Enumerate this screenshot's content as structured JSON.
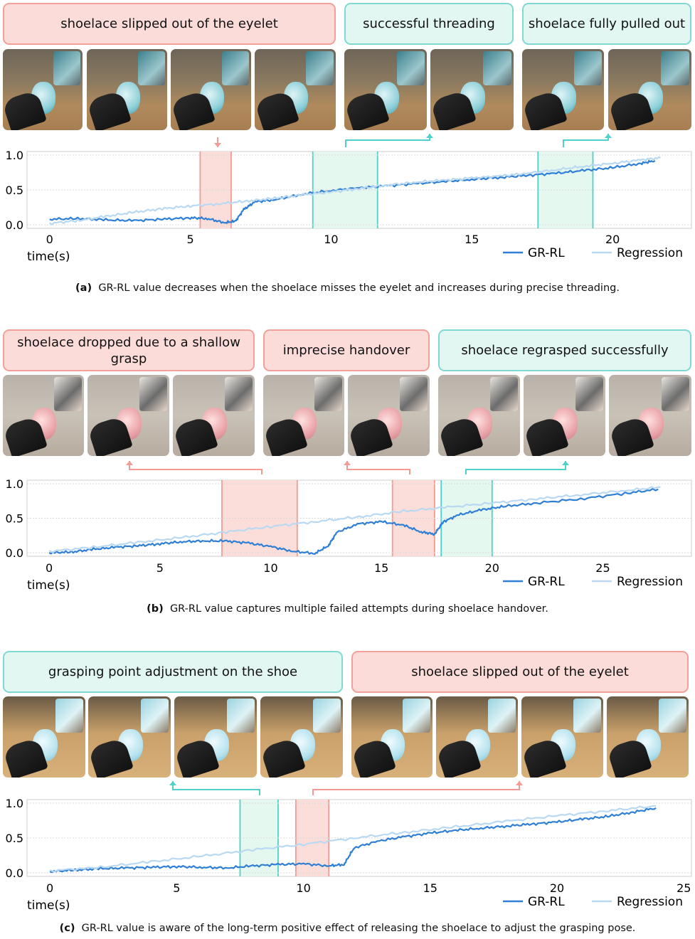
{
  "panels": [
    {
      "id": "a",
      "banners": [
        {
          "text": "shoelace slipped out of the eyelet",
          "color": "red"
        },
        {
          "text": "successful threading",
          "color": "green"
        },
        {
          "text": "shoelace fully pulled out",
          "color": "green"
        }
      ],
      "caption_label": "(a)",
      "caption_text": "GR-RL value decreases when the shoelace misses the eyelet and increases during precise threading."
    },
    {
      "id": "b",
      "banners": [
        {
          "text": "shoelace dropped due to a shallow grasp",
          "color": "red"
        },
        {
          "text": "imprecise handover",
          "color": "red"
        },
        {
          "text": "shoelace regrasped successfully",
          "color": "green"
        }
      ],
      "caption_label": "(b)",
      "caption_text": "GR-RL value captures multiple failed attempts during shoelace handover."
    },
    {
      "id": "c",
      "banners": [
        {
          "text": "grasping point adjustment on the shoe",
          "color": "green"
        },
        {
          "text": "shoelace slipped out of the eyelet",
          "color": "red"
        }
      ],
      "caption_label": "(c)",
      "caption_text": "GR-RL value is aware of the long-term positive effect of releasing the shoelace to adjust the grasping pose."
    }
  ],
  "colors": {
    "grrl": "#2f7fd4",
    "regression": "#b9d9f2",
    "red_fill": "#fbdcd8",
    "red_edge": "#f29a93",
    "green_fill": "#e4f8ee",
    "green_edge": "#4fd0c8",
    "grid": "#d9d9d9"
  },
  "chart_data": [
    {
      "type": "line",
      "title": "",
      "xlabel": "time(s)",
      "ylabel": "",
      "xlim": [
        -0.8,
        22.8
      ],
      "ylim": [
        0,
        1
      ],
      "xticks": [
        "0",
        "5",
        "10",
        "15",
        "20"
      ],
      "yticks": [
        "0.0",
        "0.5",
        "1.0"
      ],
      "legend": [
        "GR-RL",
        "Regression"
      ],
      "highlights": [
        {
          "from": 5.35,
          "to": 6.45,
          "kind": "red"
        },
        {
          "from": 9.35,
          "to": 11.65,
          "kind": "green"
        },
        {
          "from": 17.35,
          "to": 19.3,
          "kind": "green"
        }
      ],
      "series": [
        {
          "name": "GR-RL",
          "x": [
            0,
            1,
            2,
            3,
            4,
            5,
            5.6,
            6.2,
            6.6,
            6.9,
            7.3,
            8,
            9,
            10,
            11,
            12,
            13,
            14,
            15,
            16,
            17,
            18,
            19,
            20,
            21,
            21.5
          ],
          "y": [
            0.08,
            0.09,
            0.07,
            0.06,
            0.08,
            0.1,
            0.09,
            0.03,
            0.05,
            0.22,
            0.33,
            0.36,
            0.44,
            0.49,
            0.53,
            0.56,
            0.59,
            0.62,
            0.65,
            0.68,
            0.71,
            0.74,
            0.78,
            0.82,
            0.88,
            0.92
          ]
        },
        {
          "name": "Regression",
          "x": [
            0,
            1,
            2,
            3,
            4,
            5,
            6,
            7,
            8,
            9,
            10,
            11,
            12,
            13,
            14,
            15,
            16,
            17,
            18,
            19,
            20,
            21,
            21.7
          ],
          "y": [
            0.02,
            0.06,
            0.12,
            0.18,
            0.23,
            0.27,
            0.3,
            0.34,
            0.38,
            0.43,
            0.47,
            0.52,
            0.57,
            0.61,
            0.64,
            0.67,
            0.7,
            0.74,
            0.79,
            0.84,
            0.88,
            0.93,
            0.96
          ]
        }
      ]
    },
    {
      "type": "line",
      "title": "",
      "xlabel": "time(s)",
      "ylabel": "",
      "xlim": [
        -1,
        29
      ],
      "ylim": [
        0,
        1
      ],
      "xticks": [
        "0",
        "5",
        "10",
        "15",
        "20",
        "25"
      ],
      "yticks": [
        "0.0",
        "0.5",
        "1.0"
      ],
      "legend": [
        "GR-RL",
        "Regression"
      ],
      "highlights": [
        {
          "from": 7.8,
          "to": 11.2,
          "kind": "red"
        },
        {
          "from": 15.5,
          "to": 17.4,
          "kind": "red"
        },
        {
          "from": 17.7,
          "to": 20.0,
          "kind": "green"
        }
      ],
      "series": [
        {
          "name": "GR-RL",
          "x": [
            0,
            1,
            2,
            3,
            4,
            5,
            6,
            7,
            8,
            9,
            10,
            11,
            12,
            12.6,
            13,
            14,
            15,
            16,
            16.8,
            17.4,
            17.8,
            18.5,
            19.5,
            20.5,
            22,
            24,
            26,
            27.5
          ],
          "y": [
            0.0,
            0.01,
            0.05,
            0.08,
            0.1,
            0.13,
            0.16,
            0.17,
            0.17,
            0.14,
            0.09,
            0.02,
            -0.01,
            0.1,
            0.3,
            0.42,
            0.45,
            0.4,
            0.3,
            0.27,
            0.45,
            0.55,
            0.62,
            0.67,
            0.72,
            0.78,
            0.86,
            0.92
          ]
        },
        {
          "name": "Regression",
          "x": [
            0,
            2,
            4,
            6,
            8,
            10,
            12,
            14,
            16,
            18,
            20,
            22,
            24,
            26,
            27.6
          ],
          "y": [
            0.02,
            0.08,
            0.15,
            0.22,
            0.3,
            0.38,
            0.45,
            0.52,
            0.6,
            0.66,
            0.72,
            0.78,
            0.84,
            0.9,
            0.95
          ]
        }
      ]
    },
    {
      "type": "line",
      "title": "",
      "xlabel": "time(s)",
      "ylabel": "",
      "xlim": [
        -0.9,
        25.3
      ],
      "ylim": [
        0,
        1
      ],
      "xticks": [
        "0",
        "5",
        "10",
        "15",
        "20",
        "25"
      ],
      "yticks": [
        "0.0",
        "0.5",
        "1.0"
      ],
      "legend": [
        "GR-RL",
        "Regression"
      ],
      "highlights": [
        {
          "from": 7.5,
          "to": 9.0,
          "kind": "green"
        },
        {
          "from": 9.7,
          "to": 11.0,
          "kind": "red"
        }
      ],
      "series": [
        {
          "name": "GR-RL",
          "x": [
            0,
            1,
            2,
            3,
            4,
            5,
            6,
            7,
            8,
            9,
            10,
            11,
            11.6,
            12,
            13,
            14,
            15,
            16,
            17,
            18,
            19,
            20,
            21,
            22,
            23,
            23.9
          ],
          "y": [
            0.02,
            0.04,
            0.06,
            0.07,
            0.08,
            0.09,
            0.08,
            0.07,
            0.1,
            0.12,
            0.13,
            0.1,
            0.12,
            0.36,
            0.46,
            0.52,
            0.57,
            0.61,
            0.64,
            0.67,
            0.7,
            0.73,
            0.77,
            0.81,
            0.87,
            0.93
          ]
        },
        {
          "name": "Regression",
          "x": [
            0,
            2,
            4,
            6,
            8,
            10,
            12,
            14,
            16,
            18,
            20,
            22,
            23.9
          ],
          "y": [
            0.03,
            0.08,
            0.16,
            0.24,
            0.33,
            0.41,
            0.5,
            0.58,
            0.66,
            0.74,
            0.82,
            0.89,
            0.96
          ]
        }
      ]
    }
  ]
}
